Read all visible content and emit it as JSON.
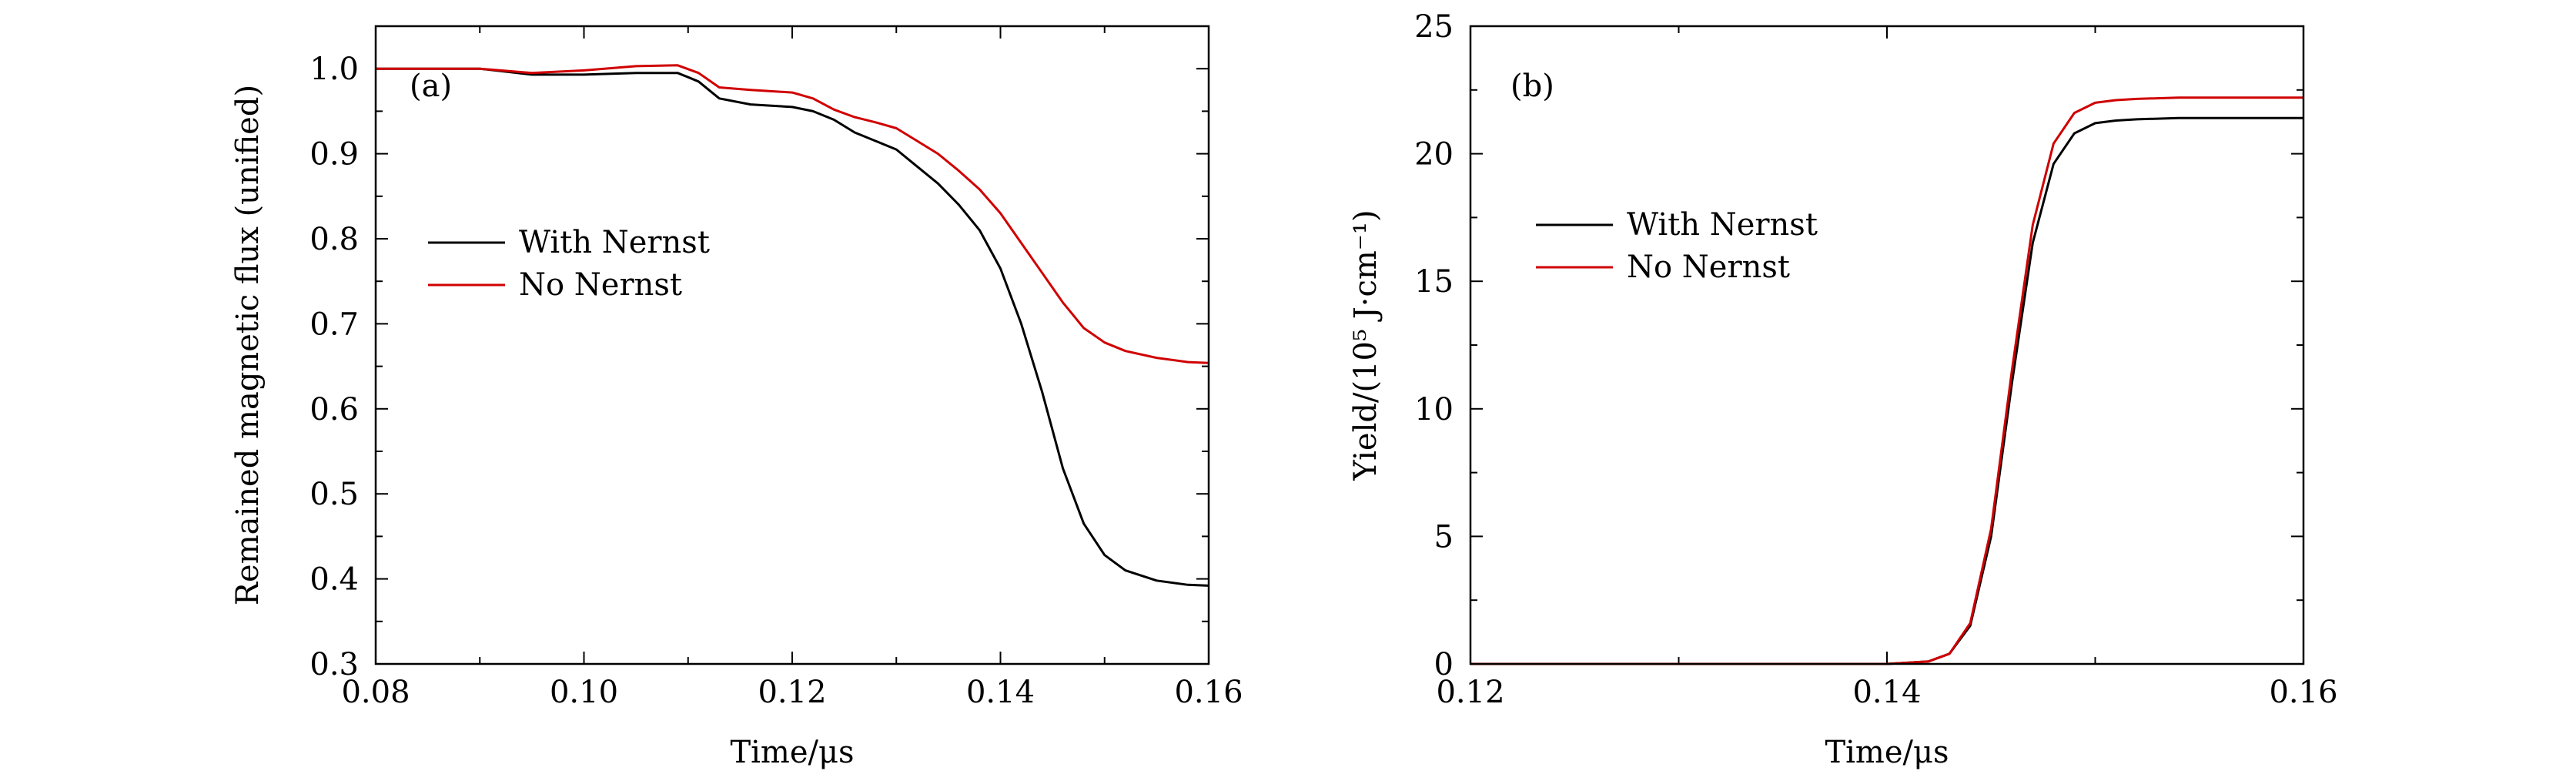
{
  "figure": {
    "panel_a_tag": "(a)",
    "panel_b_tag": "(b)"
  },
  "colors": {
    "with_nernst": "#000000",
    "no_nernst": "#d00000",
    "axis": "#000000"
  },
  "chart_data": [
    {
      "type": "line",
      "tag": "(a)",
      "title": "",
      "xlabel": "Time/μs",
      "ylabel": "Remained magnetic flux (unified)",
      "xlim": [
        0.08,
        0.16
      ],
      "ylim": [
        0.3,
        1.05
      ],
      "xticks": [
        0.08,
        0.1,
        0.12,
        0.14,
        0.16
      ],
      "xtick_labels": [
        "0.08",
        "0.10",
        "0.12",
        "0.14",
        "0.16"
      ],
      "yticks": [
        0.3,
        0.4,
        0.5,
        0.6,
        0.7,
        0.8,
        0.9,
        1.0
      ],
      "ytick_labels": [
        "0.3",
        "0.4",
        "0.5",
        "0.6",
        "0.7",
        "0.8",
        "0.9",
        "1.0"
      ],
      "legend_position": "center-left",
      "series": [
        {
          "name": "With Nernst",
          "color": "#000000",
          "x": [
            0.08,
            0.085,
            0.09,
            0.095,
            0.1,
            0.105,
            0.109,
            0.111,
            0.113,
            0.116,
            0.12,
            0.122,
            0.124,
            0.126,
            0.128,
            0.13,
            0.132,
            0.134,
            0.136,
            0.138,
            0.14,
            0.142,
            0.144,
            0.146,
            0.148,
            0.15,
            0.152,
            0.155,
            0.158,
            0.16
          ],
          "y": [
            1.0,
            1.0,
            1.0,
            0.993,
            0.993,
            0.995,
            0.995,
            0.985,
            0.965,
            0.958,
            0.955,
            0.95,
            0.94,
            0.925,
            0.915,
            0.905,
            0.885,
            0.865,
            0.84,
            0.81,
            0.765,
            0.7,
            0.62,
            0.53,
            0.465,
            0.428,
            0.41,
            0.398,
            0.393,
            0.392
          ]
        },
        {
          "name": "No Nernst",
          "color": "#d00000",
          "x": [
            0.08,
            0.085,
            0.09,
            0.095,
            0.1,
            0.105,
            0.109,
            0.111,
            0.113,
            0.116,
            0.12,
            0.122,
            0.124,
            0.126,
            0.128,
            0.13,
            0.132,
            0.134,
            0.136,
            0.138,
            0.14,
            0.142,
            0.144,
            0.146,
            0.148,
            0.15,
            0.152,
            0.155,
            0.158,
            0.16
          ],
          "y": [
            1.0,
            1.0,
            1.0,
            0.995,
            0.998,
            1.003,
            1.004,
            0.995,
            0.978,
            0.975,
            0.972,
            0.965,
            0.952,
            0.943,
            0.937,
            0.93,
            0.915,
            0.9,
            0.88,
            0.858,
            0.83,
            0.795,
            0.76,
            0.725,
            0.695,
            0.678,
            0.668,
            0.66,
            0.655,
            0.654
          ]
        }
      ]
    },
    {
      "type": "line",
      "tag": "(b)",
      "title": "",
      "xlabel": "Time/μs",
      "ylabel": "Yield/(10⁵ J·cm⁻¹)",
      "xlim": [
        0.12,
        0.16
      ],
      "ylim": [
        0,
        25
      ],
      "xticks": [
        0.12,
        0.14,
        0.16
      ],
      "xtick_labels": [
        "0.12",
        "0.14",
        "0.16"
      ],
      "yticks": [
        0,
        5,
        10,
        15,
        20,
        25
      ],
      "ytick_labels": [
        "0",
        "5",
        "10",
        "15",
        "20",
        "25"
      ],
      "legend_position": "center-left",
      "series": [
        {
          "name": "With Nernst",
          "color": "#000000",
          "x": [
            0.12,
            0.13,
            0.14,
            0.142,
            0.143,
            0.144,
            0.145,
            0.146,
            0.147,
            0.148,
            0.149,
            0.15,
            0.151,
            0.152,
            0.154,
            0.157,
            0.16
          ],
          "y": [
            0,
            0,
            0,
            0.1,
            0.4,
            1.5,
            5.0,
            11.0,
            16.5,
            19.6,
            20.8,
            21.2,
            21.3,
            21.35,
            21.4,
            21.4,
            21.4
          ]
        },
        {
          "name": "No Nernst",
          "color": "#d00000",
          "x": [
            0.12,
            0.13,
            0.14,
            0.142,
            0.143,
            0.144,
            0.145,
            0.146,
            0.147,
            0.148,
            0.149,
            0.15,
            0.151,
            0.152,
            0.154,
            0.157,
            0.16
          ],
          "y": [
            0,
            0,
            0,
            0.1,
            0.4,
            1.6,
            5.3,
            11.5,
            17.2,
            20.4,
            21.6,
            22.0,
            22.1,
            22.15,
            22.2,
            22.2,
            22.2
          ]
        }
      ]
    }
  ]
}
